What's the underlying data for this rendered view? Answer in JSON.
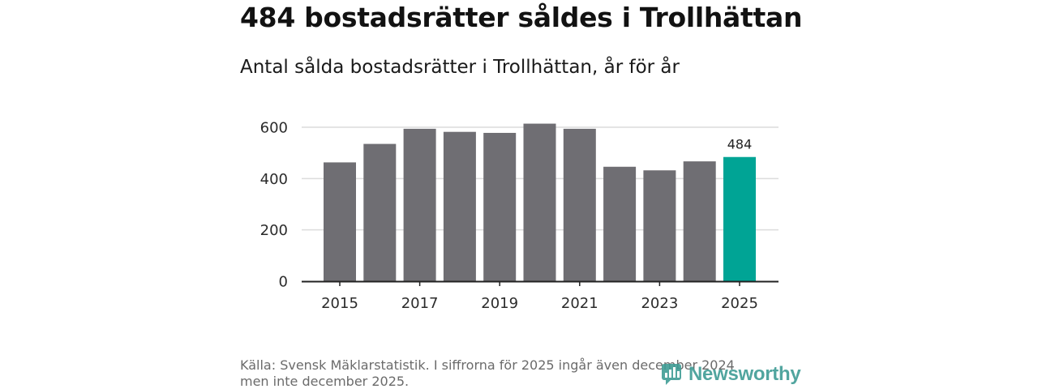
{
  "header": {
    "title": "484 bostadsrätter såldes i Trollhättan",
    "subtitle": "Antal sålda bostadsrätter i Trollhättan, år för år"
  },
  "footer": {
    "source_line1": "Källa: Svensk Mäklarstatistik. I siffrorna för 2025 ingår även december 2024",
    "source_line2": "men inte december 2025.",
    "brand": "Newsworthy",
    "brand_icon": "newsworthy-logo-icon"
  },
  "colors": {
    "bar": "#6f6e73",
    "highlight": "#00a495",
    "grid": "#dcdcdc",
    "axis": "#222222",
    "brand": "#3f9c95"
  },
  "chart_data": {
    "type": "bar",
    "title": "Antal sålda bostadsrätter i Trollhättan, år för år",
    "xlabel": "",
    "ylabel": "",
    "categories": [
      "2015",
      "2016",
      "2017",
      "2018",
      "2019",
      "2020",
      "2021",
      "2022",
      "2023",
      "2024",
      "2025"
    ],
    "values": [
      463,
      535,
      594,
      582,
      578,
      614,
      594,
      446,
      432,
      467,
      484
    ],
    "highlight_index": 10,
    "data_labels": [
      {
        "index": 10,
        "text": "484"
      }
    ],
    "x_tick_labels": [
      "2015",
      "2017",
      "2019",
      "2021",
      "2023",
      "2025"
    ],
    "y_ticks": [
      0,
      200,
      400,
      600
    ],
    "ylim": [
      0,
      600
    ],
    "grid": true,
    "legend": "none"
  }
}
